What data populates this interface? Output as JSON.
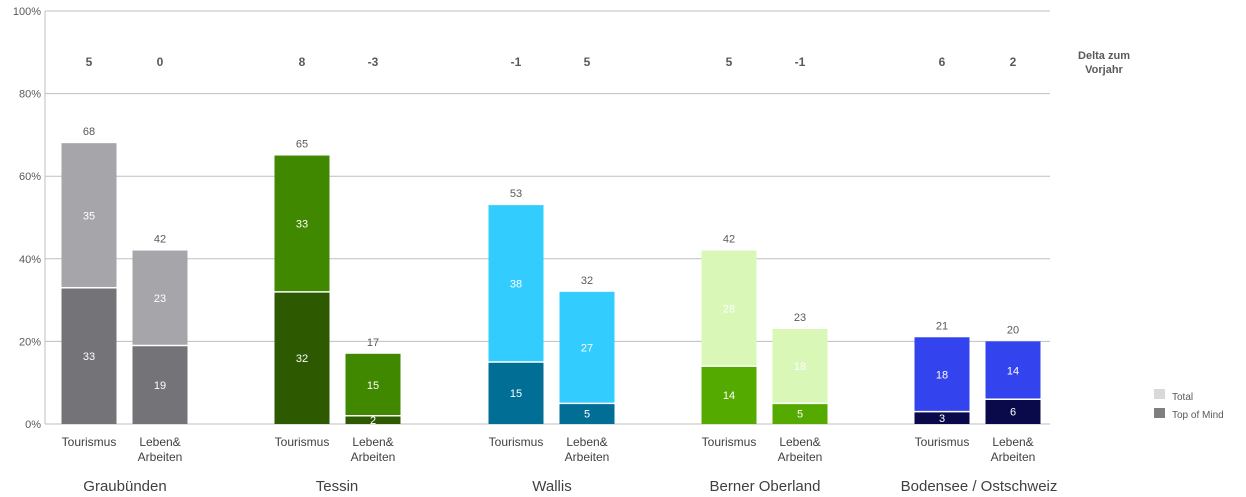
{
  "chart_data": {
    "type": "bar",
    "stacked": true,
    "ylim": [
      0,
      100
    ],
    "yticks": [
      "0%",
      "20%",
      "40%",
      "60%",
      "80%",
      "100%"
    ],
    "ytick_values": [
      0,
      20,
      40,
      60,
      80,
      100
    ],
    "grid": true,
    "delta_label_line1": "Delta zum",
    "delta_label_line2": "Vorjahr",
    "legend": {
      "placement": "right",
      "items": [
        {
          "label": "Total",
          "color": "#d9d9d9"
        },
        {
          "label": "Top of Mind",
          "color": "#7f7f7f"
        }
      ]
    },
    "groups": [
      {
        "name": "Graubünden",
        "bars": [
          {
            "label_lines": [
              "Tourismus"
            ],
            "total": 68,
            "top_of_mind": 33,
            "remainder": 35,
            "delta": "5",
            "color_top": "#737378",
            "color_rest": "#a6a6aa"
          },
          {
            "label_lines": [
              "Leben&",
              "Arbeiten"
            ],
            "total": 42,
            "top_of_mind": 19,
            "remainder": 23,
            "delta": "0",
            "color_top": "#737378",
            "color_rest": "#a6a6aa"
          }
        ]
      },
      {
        "name": "Tessin",
        "bars": [
          {
            "label_lines": [
              "Tourismus"
            ],
            "total": 65,
            "top_of_mind": 32,
            "remainder": 33,
            "delta": "8",
            "color_top": "#2d5a00",
            "color_rest": "#3f8800"
          },
          {
            "label_lines": [
              "Leben&",
              "Arbeiten"
            ],
            "total": 17,
            "top_of_mind": 2,
            "remainder": 15,
            "delta": "-3",
            "color_top": "#2d5a00",
            "color_rest": "#3f8800"
          }
        ]
      },
      {
        "name": "Wallis",
        "bars": [
          {
            "label_lines": [
              "Tourismus"
            ],
            "total": 53,
            "top_of_mind": 15,
            "remainder": 38,
            "delta": "-1",
            "color_top": "#006e95",
            "color_rest": "#33ccff"
          },
          {
            "label_lines": [
              "Leben&",
              "Arbeiten"
            ],
            "total": 32,
            "top_of_mind": 5,
            "remainder": 27,
            "delta": "5",
            "color_top": "#006e95",
            "color_rest": "#33ccff"
          }
        ]
      },
      {
        "name": "Berner Oberland",
        "bars": [
          {
            "label_lines": [
              "Tourismus"
            ],
            "total": 42,
            "top_of_mind": 14,
            "remainder": 28,
            "delta": "5",
            "color_top": "#55aa00",
            "color_rest": "#d9f7b6"
          },
          {
            "label_lines": [
              "Leben&",
              "Arbeiten"
            ],
            "total": 23,
            "top_of_mind": 5,
            "remainder": 18,
            "delta": "-1",
            "color_top": "#55aa00",
            "color_rest": "#d9f7b6"
          }
        ]
      },
      {
        "name": "Bodensee / Ostschweiz",
        "bars": [
          {
            "label_lines": [
              "Tourismus"
            ],
            "total": 21,
            "top_of_mind": 3,
            "remainder": 18,
            "delta": "6",
            "color_top": "#0a0a4a",
            "color_rest": "#3344ee"
          },
          {
            "label_lines": [
              "Leben&",
              "Arbeiten"
            ],
            "total": 20,
            "top_of_mind": 6,
            "remainder": 14,
            "delta": "2",
            "color_top": "#0a0a4a",
            "color_rest": "#3344ee"
          }
        ]
      }
    ]
  }
}
